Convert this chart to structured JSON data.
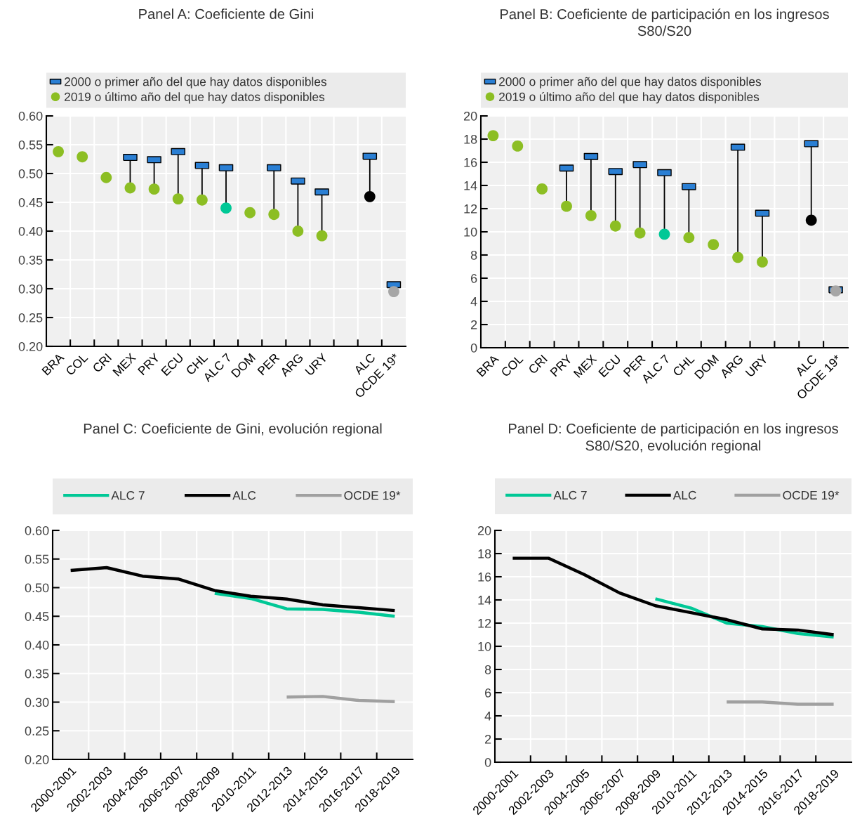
{
  "chart_data": [
    {
      "type": "scatter",
      "title": "Panel A: Coeficiente de Gini",
      "categories": [
        "BRA",
        "COL",
        "CRI",
        "MEX",
        "PRY",
        "ECU",
        "CHL",
        "ALC 7",
        "DOM",
        "PER",
        "ARG",
        "URY",
        null,
        "ALC",
        "OCDE 19*"
      ],
      "ylim": [
        0.2,
        0.6
      ],
      "yticks": [
        {
          "value": 0.2,
          "label": "0.20"
        },
        {
          "value": 0.25,
          "label": "0.25"
        },
        {
          "value": 0.3,
          "label": "0.30"
        },
        {
          "value": 0.35,
          "label": "0.35"
        },
        {
          "value": 0.4,
          "label": "0.40"
        },
        {
          "value": 0.45,
          "label": "0.45"
        },
        {
          "value": 0.5,
          "label": "0.50"
        },
        {
          "value": 0.55,
          "label": "0.55"
        },
        {
          "value": 0.6,
          "label": "0.60"
        }
      ],
      "grid": true,
      "legend": "top",
      "series": [
        {
          "name": "2000 o primer año del que hay datos disponibles",
          "marker": "square",
          "color": "#2a7fd4",
          "values": [
            null,
            null,
            null,
            0.528,
            0.524,
            0.538,
            0.514,
            0.51,
            null,
            0.51,
            0.487,
            0.468,
            null,
            0.53,
            0.307
          ]
        },
        {
          "name": "2019 o último año del que hay datos disponibles",
          "marker": "circle",
          "color": "#8cbe23",
          "colors": [
            "#8cbe23",
            "#8cbe23",
            "#8cbe23",
            "#8cbe23",
            "#8cbe23",
            "#8cbe23",
            "#8cbe23",
            "#00c896",
            "#8cbe23",
            "#8cbe23",
            "#8cbe23",
            "#8cbe23",
            null,
            "#000000",
            "#a6a6a6"
          ],
          "values": [
            0.538,
            0.529,
            0.493,
            0.475,
            0.473,
            0.456,
            0.454,
            0.44,
            0.432,
            0.429,
            0.4,
            0.392,
            null,
            0.46,
            0.295
          ]
        }
      ]
    },
    {
      "type": "scatter",
      "title": "Panel B: Coeficiente de participación en los ingresos\nS80/S20",
      "categories": [
        "BRA",
        "COL",
        "CRI",
        "PRY",
        "MEX",
        "ECU",
        "PER",
        "ALC 7",
        "CHL",
        "DOM",
        "ARG",
        "URY",
        null,
        "ALC",
        "OCDE 19*"
      ],
      "ylim": [
        0,
        20
      ],
      "yticks": [
        0,
        2,
        4,
        6,
        8,
        10,
        12,
        14,
        16,
        18,
        20
      ],
      "grid": true,
      "legend": "top",
      "series": [
        {
          "name": "2000 o primer año del que hay datos disponibles",
          "marker": "square",
          "color": "#2a7fd4",
          "values": [
            null,
            null,
            null,
            15.5,
            16.5,
            15.2,
            15.8,
            15.1,
            13.9,
            null,
            17.3,
            11.6,
            null,
            17.6,
            5.0
          ]
        },
        {
          "name": "2019 o último año del que hay datos disponibles",
          "marker": "circle",
          "color": "#8cbe23",
          "colors": [
            "#8cbe23",
            "#8cbe23",
            "#8cbe23",
            "#8cbe23",
            "#8cbe23",
            "#8cbe23",
            "#8cbe23",
            "#00c896",
            "#8cbe23",
            "#8cbe23",
            "#8cbe23",
            "#8cbe23",
            null,
            "#000000",
            "#a6a6a6"
          ],
          "values": [
            18.3,
            17.4,
            13.7,
            12.2,
            11.4,
            10.5,
            9.9,
            9.8,
            9.5,
            8.9,
            7.8,
            7.4,
            null,
            11.0,
            4.9
          ]
        }
      ]
    },
    {
      "type": "line",
      "title": "Panel C: Coeficiente de Gini, evolución regional",
      "categories": [
        "2000-2001",
        "2002-2003",
        "2004-2005",
        "2006-2007",
        "2008-2009",
        "2010-2011",
        "2012-2013",
        "2014-2015",
        "2016-2017",
        "2018-2019"
      ],
      "ylim": [
        0.2,
        0.6
      ],
      "yticks": [
        {
          "value": 0.2,
          "label": "0.20"
        },
        {
          "value": 0.25,
          "label": "0.25"
        },
        {
          "value": 0.3,
          "label": "0.30"
        },
        {
          "value": 0.35,
          "label": "0.35"
        },
        {
          "value": 0.4,
          "label": "0.40"
        },
        {
          "value": 0.45,
          "label": "0.45"
        },
        {
          "value": 0.5,
          "label": "0.50"
        },
        {
          "value": 0.55,
          "label": "0.55"
        },
        {
          "value": 0.6,
          "label": "0.60"
        }
      ],
      "grid": true,
      "legend": "top",
      "series": [
        {
          "name": "ALC 7",
          "color": "#00c896",
          "values": [
            null,
            null,
            null,
            null,
            0.49,
            0.481,
            0.463,
            0.462,
            0.457,
            0.45
          ]
        },
        {
          "name": "ALC",
          "color": "#000000",
          "values": [
            0.53,
            0.535,
            0.52,
            0.515,
            0.495,
            0.485,
            0.48,
            0.47,
            0.465,
            0.46
          ]
        },
        {
          "name": "OCDE 19*",
          "color": "#a0a0a0",
          "values": [
            null,
            null,
            null,
            null,
            null,
            null,
            0.309,
            0.31,
            0.303,
            0.301
          ]
        }
      ]
    },
    {
      "type": "line",
      "title": "Panel D: Coeficiente de participación en los ingresos\nS80/S20, evolución regional",
      "categories": [
        "2000-2001",
        "2002-2003",
        "2004-2005",
        "2006-2007",
        "2008-2009",
        "2010-2011",
        "2012-2013",
        "2014-2015",
        "2016-2017",
        "2018-2019"
      ],
      "ylim": [
        0,
        20
      ],
      "yticks": [
        0,
        2,
        4,
        6,
        8,
        10,
        12,
        14,
        16,
        18,
        20
      ],
      "grid": true,
      "legend": "top",
      "series": [
        {
          "name": "ALC 7",
          "color": "#00c896",
          "values": [
            null,
            null,
            null,
            null,
            14.1,
            13.3,
            12.0,
            11.7,
            11.1,
            10.8
          ]
        },
        {
          "name": "ALC",
          "color": "#000000",
          "values": [
            17.6,
            17.6,
            16.2,
            14.6,
            13.5,
            12.9,
            12.3,
            11.5,
            11.4,
            11.0
          ]
        },
        {
          "name": "OCDE 19*",
          "color": "#a0a0a0",
          "values": [
            null,
            null,
            null,
            null,
            null,
            null,
            5.2,
            5.2,
            5.0,
            5.0
          ]
        }
      ]
    }
  ]
}
